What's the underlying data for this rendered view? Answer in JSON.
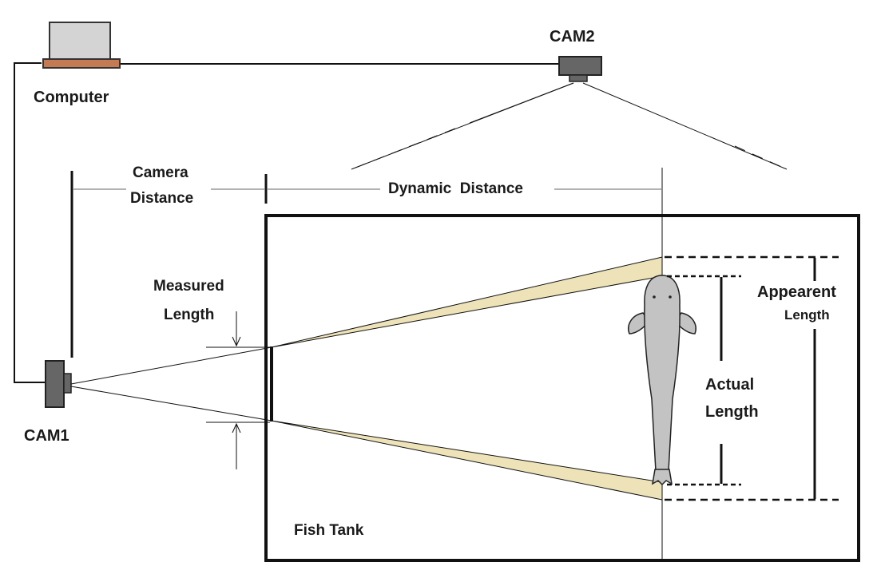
{
  "labels": {
    "computer": "Computer",
    "cam2": "CAM2",
    "cam1": "CAM1",
    "camera_distance_line1": "Camera",
    "camera_distance_line2": "Distance",
    "dynamic_distance": "Dynamic  Distance",
    "measured_length_line1": "Measured",
    "measured_length_line2": "Length",
    "appearent_length_line1": "Appearent",
    "appearent_length_line2": "Length",
    "actual_length_line1": "Actual",
    "actual_length_line2": "Length",
    "fish_tank": "Fish Tank"
  },
  "colors": {
    "cone_fill": "#eee3b8",
    "fish_fill": "#c3c3c3",
    "camera_body": "#666666",
    "laptop_screen": "#d4d4d4",
    "laptop_base": "#c47a52",
    "line": "#111111"
  }
}
